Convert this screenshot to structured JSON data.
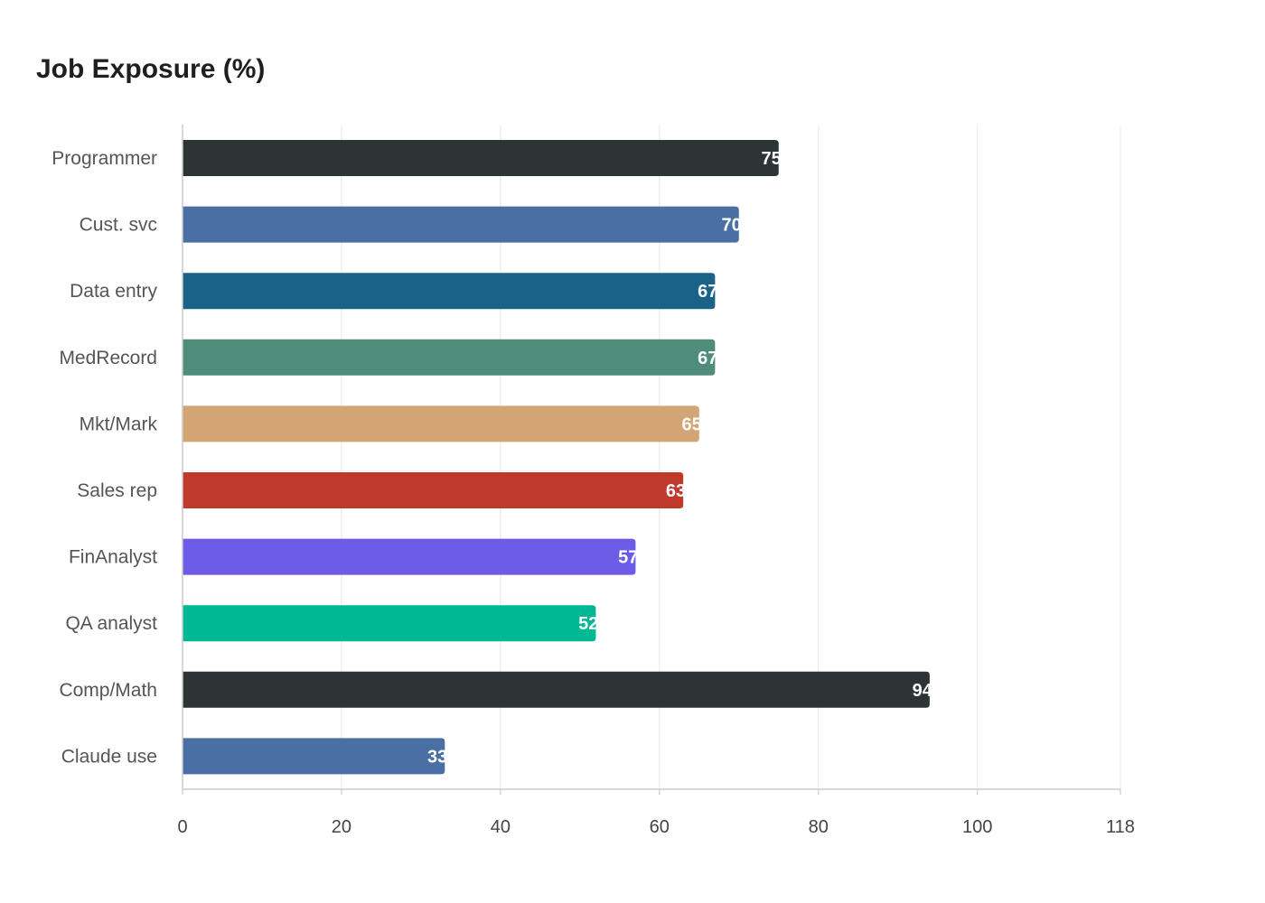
{
  "chart_data": {
    "type": "bar",
    "orientation": "horizontal",
    "title": "Job Exposure (%)",
    "categories": [
      "Programmer",
      "Cust. svc",
      "Data entry",
      "MedRecord",
      "Mkt/Mark",
      "Sales rep",
      "FinAnalyst",
      "QA analyst",
      "Comp/Math",
      "Claude use"
    ],
    "values": [
      75,
      70,
      67,
      67,
      65,
      63,
      57,
      52,
      94,
      33
    ],
    "colors": [
      "#2d3436",
      "#4a6fa5",
      "#1b6289",
      "#4f8d7a",
      "#d3a474",
      "#c0392b",
      "#6c5ce7",
      "#00b894",
      "#2d3436",
      "#4a6fa5"
    ],
    "xlim": [
      0,
      118
    ],
    "xticks": [
      0,
      20,
      40,
      60,
      80,
      100,
      118
    ],
    "grid": true
  }
}
